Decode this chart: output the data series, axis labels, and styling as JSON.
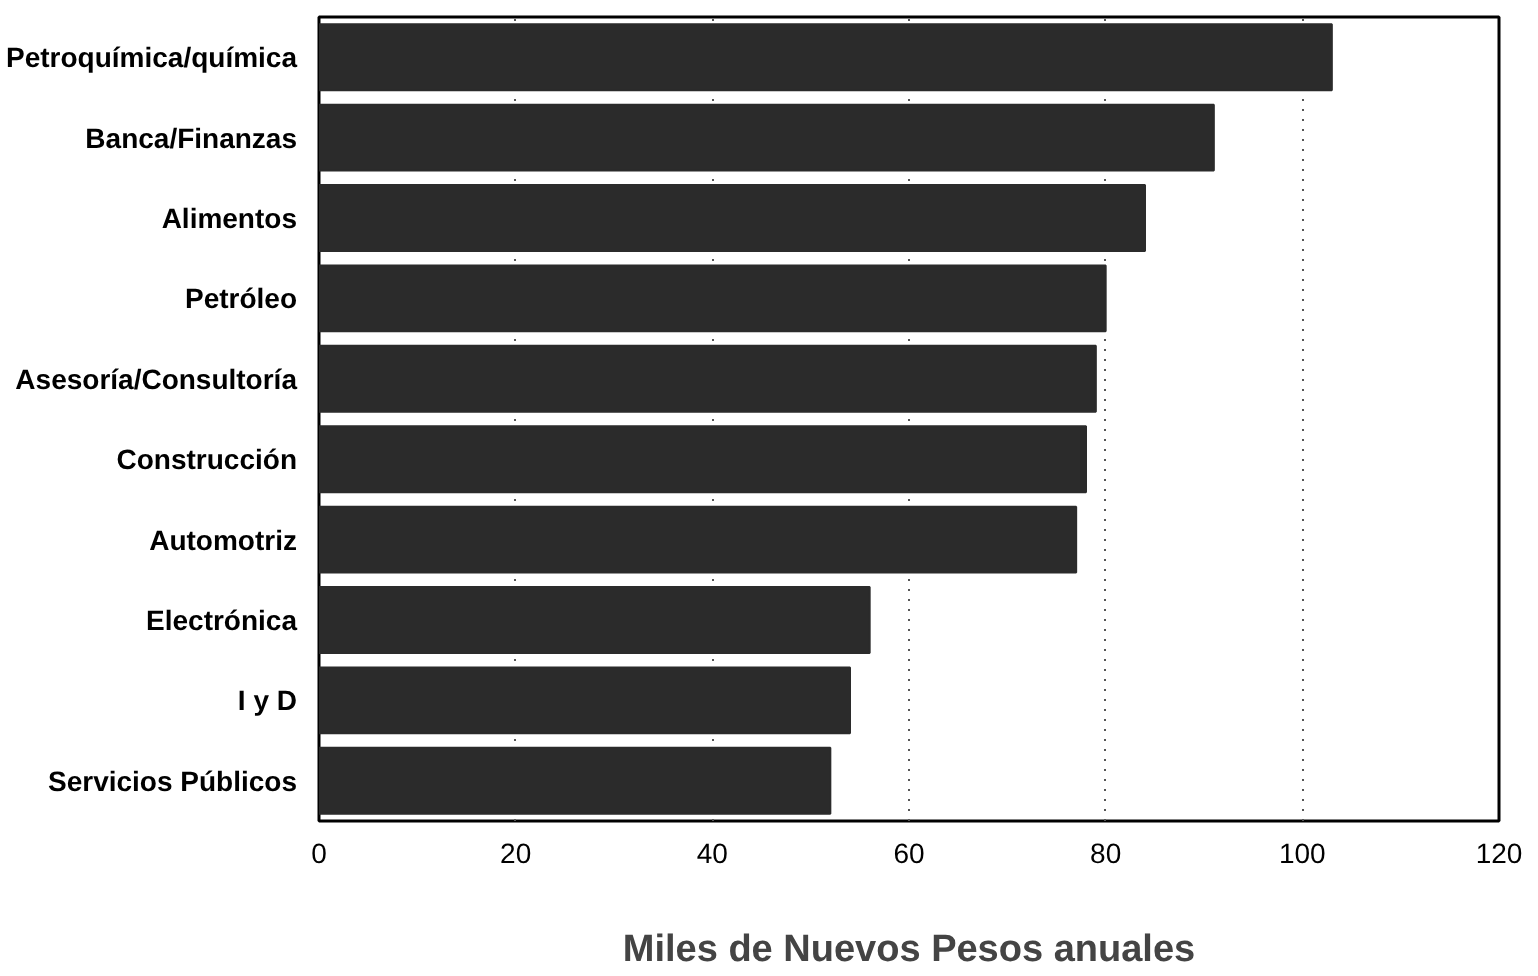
{
  "chart_data": {
    "type": "bar",
    "orientation": "horizontal",
    "xlabel": "Miles de Nuevos Pesos anuales",
    "categories": [
      "Petroquímica/química",
      "Banca/Finanzas",
      "Alimentos",
      "Petróleo",
      "Asesoría/Consultoría",
      "Construcción",
      "Automotriz",
      "Electrónica",
      "I y D",
      "Servicios Públicos"
    ],
    "values": [
      103,
      91,
      84,
      80,
      79,
      78,
      77,
      56,
      54,
      52
    ],
    "color": "#2b2b2b",
    "xlim": [
      0,
      120
    ],
    "xticks": [
      0,
      20,
      40,
      60,
      80,
      100,
      120
    ],
    "grid": "x",
    "line_style": "dotted"
  }
}
